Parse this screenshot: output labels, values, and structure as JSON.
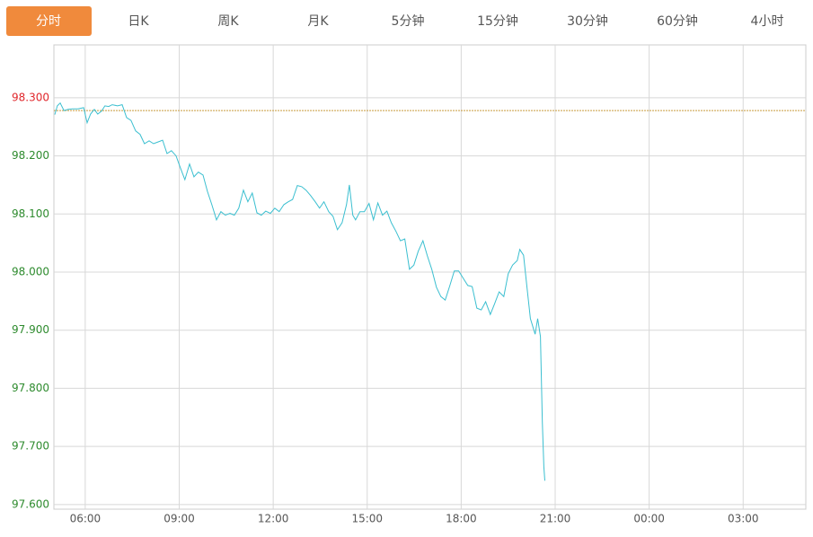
{
  "tabs": {
    "items": [
      "分时",
      "日K",
      "周K",
      "月K",
      "5分钟",
      "15分钟",
      "30分钟",
      "60分钟",
      "4小时"
    ],
    "active": 0,
    "active_color": "#f08a3c"
  },
  "chart_data": {
    "type": "line",
    "x": [
      5.03,
      5.11,
      5.2,
      5.32,
      5.46,
      5.6,
      5.77,
      5.95,
      6.06,
      6.17,
      6.29,
      6.4,
      6.52,
      6.63,
      6.75,
      6.86,
      7.03,
      7.18,
      7.32,
      7.46,
      7.61,
      7.75,
      7.89,
      8.04,
      8.18,
      8.32,
      8.47,
      8.61,
      8.75,
      8.9,
      9.04,
      9.18,
      9.33,
      9.47,
      9.61,
      9.76,
      9.9,
      10.04,
      10.19,
      10.33,
      10.47,
      10.62,
      10.76,
      10.9,
      11.05,
      11.19,
      11.33,
      11.48,
      11.62,
      11.76,
      11.91,
      12.05,
      12.19,
      12.34,
      12.48,
      12.62,
      12.77,
      12.91,
      13.05,
      13.19,
      13.34,
      13.48,
      13.62,
      13.77,
      13.91,
      14.05,
      14.2,
      14.34,
      14.43,
      14.54,
      14.63,
      14.77,
      14.91,
      15.06,
      15.2,
      15.34,
      15.49,
      15.63,
      15.77,
      15.92,
      16.06,
      16.2,
      16.35,
      16.49,
      16.63,
      16.78,
      16.92,
      17.06,
      17.21,
      17.35,
      17.49,
      17.64,
      17.78,
      17.92,
      18.07,
      18.21,
      18.35,
      18.5,
      18.64,
      18.78,
      18.93,
      19.07,
      19.21,
      19.36,
      19.5,
      19.64,
      19.79,
      19.87,
      19.99,
      20.1,
      20.21,
      20.36,
      20.44,
      20.53,
      20.59,
      20.64,
      20.67
    ],
    "values": [
      98.271,
      98.286,
      98.291,
      98.278,
      98.28,
      98.281,
      98.281,
      98.283,
      98.257,
      98.272,
      98.28,
      98.272,
      98.277,
      98.286,
      98.285,
      98.288,
      98.286,
      98.288,
      98.266,
      98.261,
      98.243,
      98.237,
      98.221,
      98.226,
      98.221,
      98.224,
      98.227,
      98.204,
      98.209,
      98.2,
      98.179,
      98.159,
      98.186,
      98.164,
      98.172,
      98.167,
      98.139,
      98.116,
      98.09,
      98.104,
      98.098,
      98.101,
      98.098,
      98.11,
      98.141,
      98.121,
      98.136,
      98.102,
      98.098,
      98.105,
      98.101,
      98.11,
      98.104,
      98.116,
      98.121,
      98.125,
      98.149,
      98.147,
      98.141,
      98.132,
      98.121,
      98.11,
      98.121,
      98.104,
      98.096,
      98.073,
      98.085,
      98.116,
      98.15,
      98.098,
      98.09,
      98.104,
      98.104,
      98.118,
      98.09,
      98.119,
      98.098,
      98.105,
      98.085,
      98.07,
      98.054,
      98.057,
      98.005,
      98.012,
      98.036,
      98.054,
      98.028,
      98.005,
      97.974,
      97.958,
      97.952,
      97.977,
      98.002,
      98.002,
      97.989,
      97.977,
      97.975,
      97.938,
      97.935,
      97.949,
      97.927,
      97.946,
      97.966,
      97.958,
      97.997,
      98.012,
      98.02,
      98.039,
      98.029,
      97.974,
      97.92,
      97.893,
      97.92,
      97.889,
      97.742,
      97.665,
      97.641
    ],
    "color": "#3bbfd0",
    "reference": 98.278,
    "reference_color": "#c89a3c",
    "up_color": "#e0262b",
    "down_color": "#2e8b2e",
    "xlim": [
      5,
      29
    ],
    "xticks": [
      {
        "value": 6,
        "label": "06:00"
      },
      {
        "value": 9,
        "label": "09:00"
      },
      {
        "value": 12,
        "label": "12:00"
      },
      {
        "value": 15,
        "label": "15:00"
      },
      {
        "value": 18,
        "label": "18:00"
      },
      {
        "value": 21,
        "label": "21:00"
      },
      {
        "value": 24,
        "label": "00:00"
      },
      {
        "value": 27,
        "label": "03:00"
      }
    ],
    "ylim": [
      97.592,
      98.391
    ],
    "yticks": [
      {
        "value": 97.6,
        "label": "97.600"
      },
      {
        "value": 97.7,
        "label": "97.700"
      },
      {
        "value": 97.8,
        "label": "97.800"
      },
      {
        "value": 97.9,
        "label": "97.900"
      },
      {
        "value": 98.0,
        "label": "98.000"
      },
      {
        "value": 98.1,
        "label": "98.100"
      },
      {
        "value": 98.2,
        "label": "98.200"
      },
      {
        "value": 98.3,
        "label": "98.300"
      }
    ],
    "grid": true
  }
}
